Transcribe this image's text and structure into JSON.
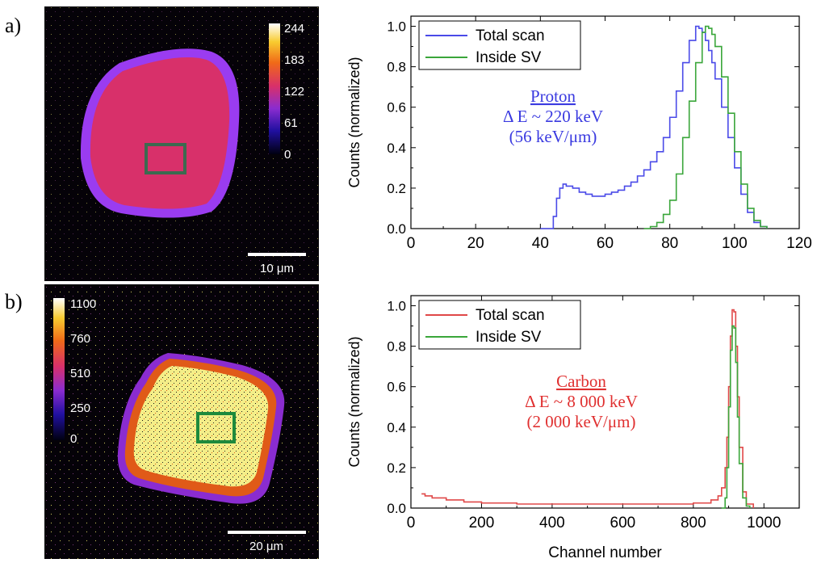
{
  "panels": {
    "a": {
      "label": "a)",
      "map": {
        "colorbar_ticks": [
          "244",
          "183",
          "122",
          "61",
          "0"
        ],
        "scalebar_label": "10 μm",
        "colors": {
          "background": "#050208",
          "field": "#d8306a",
          "halo": "#9a3cf0",
          "roi": "#3c6a50"
        }
      }
    },
    "b": {
      "label": "b)",
      "map": {
        "colorbar_ticks": [
          "1100",
          "760",
          "510",
          "250",
          "0"
        ],
        "scalebar_label": "20 μm",
        "colors": {
          "background": "#050208",
          "field": "#f4ee88",
          "halo": "#e05a18",
          "roi": "#1e8a3c"
        }
      }
    }
  },
  "chart_data": [
    {
      "type": "line",
      "panel": "a",
      "xlabel": "",
      "ylabel": "Counts (normalized)",
      "xlim": [
        0,
        120
      ],
      "ylim": [
        0,
        1.05
      ],
      "xticks": [
        0,
        20,
        40,
        60,
        80,
        100,
        120
      ],
      "yticks": [
        0.0,
        0.2,
        0.4,
        0.6,
        0.8,
        1.0
      ],
      "legend": "top-left",
      "annotation": {
        "lines": [
          "Proton",
          "Δ E ~ 220 keV",
          "(56 keV/μm)"
        ],
        "color": "#3a3ae0"
      },
      "series": [
        {
          "name": "Total scan",
          "color": "#4a4ae8",
          "x": [
            40,
            43,
            44,
            45,
            46,
            47,
            48,
            50,
            52,
            54,
            56,
            58,
            60,
            62,
            64,
            66,
            68,
            70,
            72,
            74,
            76,
            78,
            80,
            82,
            84,
            86,
            88,
            89,
            90,
            91,
            92,
            93,
            94,
            96,
            98,
            100,
            102,
            104,
            106,
            108,
            110
          ],
          "y": [
            0,
            0,
            0.06,
            0.15,
            0.2,
            0.22,
            0.21,
            0.2,
            0.18,
            0.17,
            0.16,
            0.16,
            0.17,
            0.18,
            0.19,
            0.21,
            0.23,
            0.26,
            0.29,
            0.33,
            0.38,
            0.45,
            0.55,
            0.68,
            0.82,
            0.93,
            1.0,
            0.99,
            0.97,
            0.93,
            0.88,
            0.82,
            0.74,
            0.6,
            0.45,
            0.3,
            0.17,
            0.08,
            0.03,
            0.01,
            0
          ]
        },
        {
          "name": "Inside SV",
          "color": "#3aa63a",
          "x": [
            72,
            74,
            76,
            78,
            80,
            82,
            84,
            86,
            88,
            90,
            91,
            92,
            93,
            94,
            96,
            98,
            100,
            102,
            104,
            106,
            108,
            110
          ],
          "y": [
            0,
            0.01,
            0.03,
            0.07,
            0.14,
            0.27,
            0.45,
            0.63,
            0.82,
            0.97,
            1.0,
            0.99,
            0.96,
            0.9,
            0.75,
            0.57,
            0.38,
            0.22,
            0.1,
            0.04,
            0.01,
            0
          ]
        }
      ]
    },
    {
      "type": "line",
      "panel": "b",
      "xlabel": "Channel number",
      "ylabel": "Counts (normalized)",
      "xlim": [
        0,
        1100
      ],
      "ylim": [
        0,
        1.05
      ],
      "xticks": [
        0,
        200,
        400,
        600,
        800,
        1000
      ],
      "yticks": [
        0.0,
        0.2,
        0.4,
        0.6,
        0.8,
        1.0
      ],
      "legend": "top-left",
      "annotation": {
        "lines": [
          "Carbon",
          "Δ E ~ 8 000 keV",
          "(2 000 keV/μm)"
        ],
        "color": "#e03030"
      },
      "series": [
        {
          "name": "Total scan",
          "color": "#e04848",
          "x": [
            30,
            40,
            60,
            100,
            150,
            200,
            300,
            400,
            500,
            600,
            700,
            800,
            850,
            870,
            880,
            890,
            895,
            900,
            905,
            910,
            915,
            920,
            925,
            930,
            940,
            950,
            970
          ],
          "y": [
            0.07,
            0.06,
            0.05,
            0.04,
            0.03,
            0.025,
            0.02,
            0.02,
            0.02,
            0.02,
            0.02,
            0.025,
            0.04,
            0.06,
            0.1,
            0.2,
            0.35,
            0.6,
            0.85,
            0.98,
            0.97,
            0.8,
            0.55,
            0.3,
            0.08,
            0.02,
            0
          ]
        },
        {
          "name": "Inside SV",
          "color": "#3aa63a",
          "x": [
            880,
            890,
            895,
            900,
            905,
            910,
            915,
            920,
            925,
            930,
            940,
            950,
            960
          ],
          "y": [
            0,
            0.05,
            0.2,
            0.5,
            0.78,
            0.9,
            0.89,
            0.72,
            0.45,
            0.22,
            0.05,
            0.01,
            0
          ]
        }
      ]
    }
  ]
}
